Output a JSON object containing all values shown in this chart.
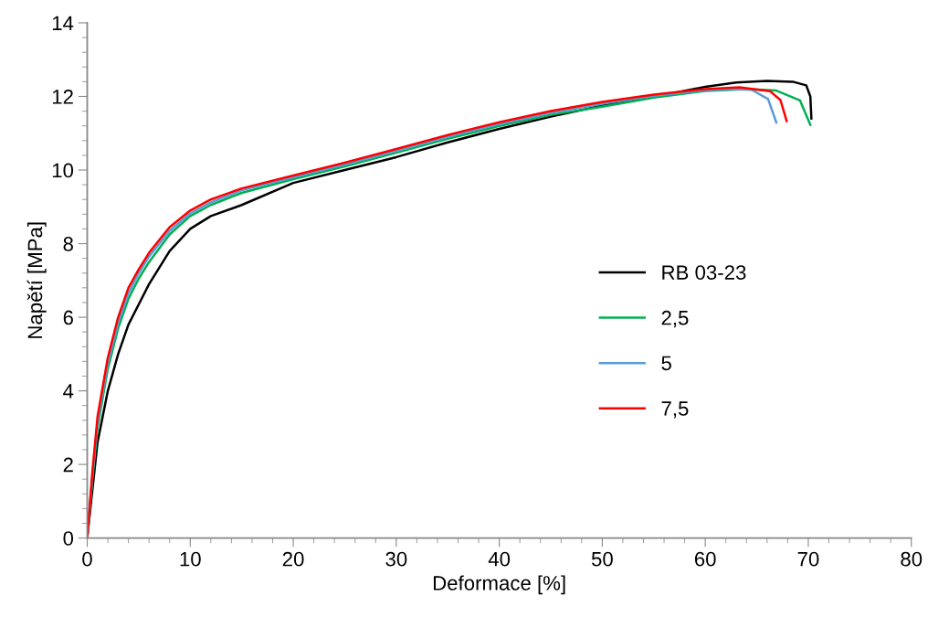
{
  "chart_data": {
    "type": "line",
    "xlabel": "Deformace [%]",
    "ylabel": "Napětí [MPa]",
    "xlim": [
      0,
      80
    ],
    "xticks": [
      0,
      10,
      20,
      30,
      40,
      50,
      60,
      70,
      80
    ],
    "ylim": [
      0,
      14
    ],
    "yticks": [
      0,
      2,
      4,
      6,
      8,
      10,
      12,
      14
    ],
    "grid": false,
    "legend": "right",
    "marker": "none",
    "line_style": "solid",
    "series": [
      {
        "name": "RB 03-23",
        "color": "#000000",
        "x": [
          0,
          0.5,
          1,
          2,
          3,
          4,
          5,
          6,
          8,
          10,
          12,
          15,
          20,
          25,
          30,
          35,
          40,
          45,
          50,
          55,
          60,
          63,
          66,
          68.5,
          69.8,
          70.2,
          70.3
        ],
        "values": [
          0,
          1.3,
          2.6,
          4.0,
          5.0,
          5.8,
          6.35,
          6.9,
          7.8,
          8.4,
          8.75,
          9.05,
          9.65,
          10.0,
          10.35,
          10.75,
          11.12,
          11.45,
          11.75,
          11.99,
          12.26,
          12.38,
          12.42,
          12.4,
          12.3,
          12.0,
          11.4
        ]
      },
      {
        "name": "2,5",
        "color": "#00b050",
        "x": [
          0,
          0.5,
          1,
          2,
          3,
          4,
          5,
          6,
          8,
          10,
          12,
          15,
          20,
          25,
          30,
          35,
          40,
          45,
          50,
          55,
          60,
          64,
          66.9,
          69.2,
          70.2
        ],
        "values": [
          0,
          1.6,
          3.0,
          4.6,
          5.7,
          6.5,
          7.05,
          7.5,
          8.25,
          8.75,
          9.05,
          9.38,
          9.75,
          10.1,
          10.47,
          10.85,
          11.2,
          11.5,
          11.72,
          11.97,
          12.15,
          12.2,
          12.16,
          11.89,
          11.23
        ]
      },
      {
        "name": "5",
        "color": "#5b9bd5",
        "x": [
          0,
          0.5,
          1,
          2,
          3,
          4,
          5,
          6,
          8,
          10,
          12,
          15,
          20,
          25,
          30,
          35,
          40,
          45,
          50,
          55,
          60,
          62.5,
          64.5,
          66.1,
          66.9
        ],
        "values": [
          0,
          1.7,
          3.15,
          4.75,
          5.85,
          6.65,
          7.2,
          7.65,
          8.35,
          8.82,
          9.12,
          9.45,
          9.8,
          10.15,
          10.52,
          10.9,
          11.25,
          11.55,
          11.8,
          12.02,
          12.17,
          12.2,
          12.18,
          11.93,
          11.29
        ]
      },
      {
        "name": "7,5",
        "color": "#ff0000",
        "x": [
          0,
          0.5,
          1,
          2,
          3,
          4,
          5,
          6,
          8,
          10,
          12,
          15,
          20,
          25,
          30,
          35,
          40,
          45,
          50,
          55,
          60,
          63.3,
          66.3,
          67.3,
          67.9
        ],
        "values": [
          0,
          1.8,
          3.3,
          4.9,
          6.0,
          6.8,
          7.3,
          7.75,
          8.45,
          8.9,
          9.2,
          9.5,
          9.85,
          10.2,
          10.57,
          10.95,
          11.3,
          11.6,
          11.85,
          12.05,
          12.2,
          12.25,
          12.14,
          11.9,
          11.33
        ]
      }
    ]
  }
}
